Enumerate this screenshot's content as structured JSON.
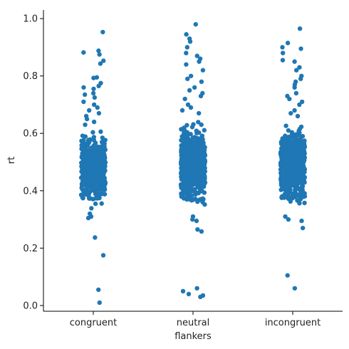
{
  "chart_data": {
    "type": "scatter",
    "subtype": "strip",
    "title": "",
    "xlabel": "flankers",
    "ylabel": "rt",
    "categories": [
      "congruent",
      "neutral",
      "incongruent"
    ],
    "ylim": [
      -0.02,
      1.03
    ],
    "yticks": [
      "0.0",
      "0.2",
      "0.4",
      "0.6",
      "0.8",
      "1.0"
    ],
    "grid": false,
    "legend": "none",
    "color": "#1f77b4",
    "series": [
      {
        "category": "congruent",
        "bulk_range": [
          0.33,
          0.62
        ],
        "outliers": [
          0.953,
          0.888,
          0.882,
          0.875,
          0.853,
          0.843,
          0.795,
          0.793,
          0.775,
          0.765,
          0.76,
          0.755,
          0.74,
          0.735,
          0.725,
          0.71,
          0.7,
          0.69,
          0.68,
          0.67,
          0.66,
          0.65,
          0.64,
          0.63,
          0.32,
          0.31,
          0.305,
          0.237,
          0.175,
          0.055,
          0.01
        ]
      },
      {
        "category": "neutral",
        "bulk_range": [
          0.32,
          0.66
        ],
        "outliers": [
          0.98,
          0.945,
          0.93,
          0.92,
          0.9,
          0.88,
          0.87,
          0.86,
          0.85,
          0.84,
          0.82,
          0.8,
          0.79,
          0.78,
          0.76,
          0.75,
          0.74,
          0.73,
          0.72,
          0.7,
          0.69,
          0.68,
          0.67,
          0.31,
          0.3,
          0.295,
          0.265,
          0.258,
          0.06,
          0.05,
          0.04,
          0.035,
          0.03
        ]
      },
      {
        "category": "incongruent",
        "bulk_range": [
          0.33,
          0.65
        ],
        "outliers": [
          0.965,
          0.915,
          0.9,
          0.895,
          0.88,
          0.855,
          0.85,
          0.83,
          0.82,
          0.8,
          0.79,
          0.78,
          0.77,
          0.76,
          0.74,
          0.73,
          0.72,
          0.71,
          0.7,
          0.68,
          0.67,
          0.66,
          0.31,
          0.3,
          0.295,
          0.27,
          0.105,
          0.06
        ]
      }
    ]
  }
}
